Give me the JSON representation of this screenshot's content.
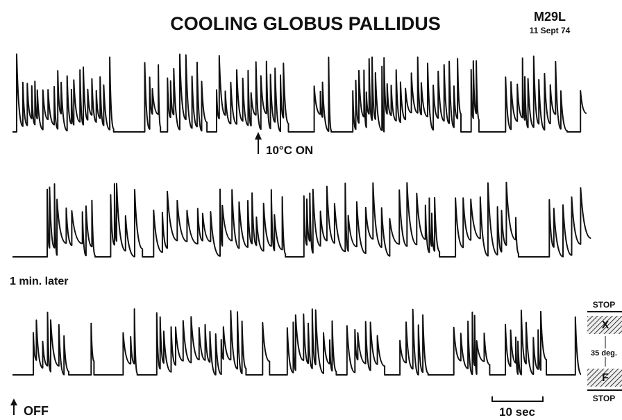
{
  "header": {
    "title": "COOLING GLOBUS PALLIDUS",
    "subject": "M29L",
    "date": "11 Sept 74"
  },
  "annotations": {
    "cooling_on": "10°C ON",
    "interval": "1 min. later",
    "cooling_off": "OFF",
    "scale": "10 sec"
  },
  "scale_box": {
    "top": "STOP",
    "upper": "X",
    "range": "35 deg.",
    "lower": "F",
    "bottom": "STOP"
  }
}
